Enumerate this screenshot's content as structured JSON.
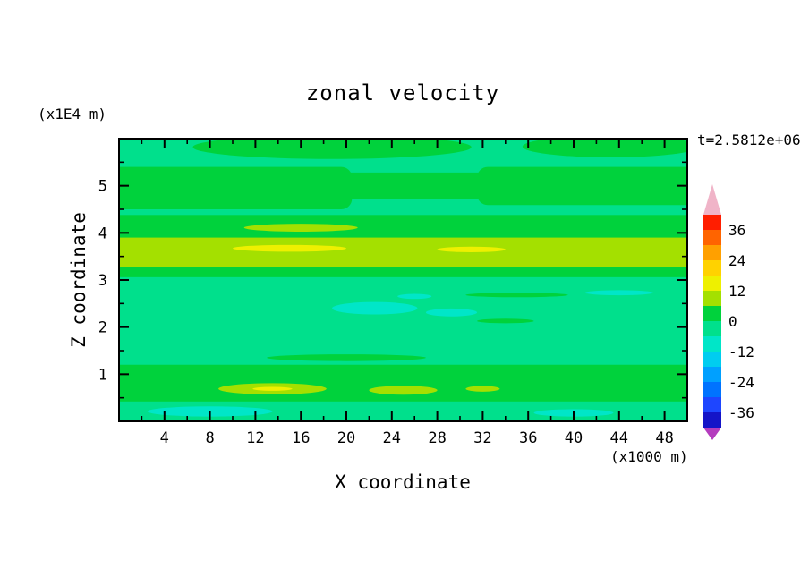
{
  "figure": {
    "title": "zonal velocity",
    "timestamp": "t=2.5812e+06",
    "x_axis": {
      "label": "X coordinate",
      "unit": "(x1000 m)"
    },
    "y_axis": {
      "label": "Z coordinate",
      "unit": "(x1E4 m)"
    }
  },
  "chart_data": {
    "type": "heatmap",
    "subtype": "filled-contour",
    "title": "zonal velocity",
    "xlabel": "X coordinate",
    "ylabel": "Z coordinate",
    "x_unit_note": "(x1000 m)",
    "y_unit_note": "(x1E4 m)",
    "time_annotation": "t=2.5812e+06",
    "x_range": [
      0,
      50
    ],
    "y_range": [
      0,
      6
    ],
    "x_ticks_major": [
      4,
      8,
      12,
      16,
      20,
      24,
      28,
      32,
      36,
      40,
      44,
      48
    ],
    "x_ticks_minor": [
      2,
      6,
      10,
      14,
      18,
      22,
      26,
      30,
      34,
      38,
      42,
      46,
      50
    ],
    "y_ticks_major": [
      1,
      2,
      3,
      4,
      5
    ],
    "y_ticks_minor": [
      0.5,
      1.5,
      2.5,
      3.5,
      4.5,
      5.5
    ],
    "grid": false,
    "legend_position": "right-colorbar",
    "colorbar": {
      "labels": [
        "36",
        "24",
        "12",
        "0",
        "-12",
        "-24",
        "-36"
      ],
      "label_values": [
        36,
        24,
        12,
        0,
        -12,
        -24,
        -36
      ],
      "level_min": -42,
      "level_max": 42,
      "level_step": 6,
      "palette_bottom_to_top": [
        "#1414c8",
        "#1e46ff",
        "#0073ff",
        "#00a0ff",
        "#00cdf0",
        "#00e6c8",
        "#00e08c",
        "#00d23c",
        "#a4e000",
        "#eef000",
        "#ffd200",
        "#ffa000",
        "#ff6400",
        "#ff1e00"
      ],
      "under_arrow_color": "#b43cbe",
      "over_arrow_color": "#f0b4c8"
    },
    "base_level_index": 6,
    "field_summary": "Horizontally banded zonal velocity field: mostly -6..0 (spring green) background; 0..6 green bands near top (z~4.6-5.5) and bottom (z~0.4-1.2); 6..12 yellow-green stripe at z~3.2-3.8 with small 12..18 yellow lenses; -12..-6 cyan patches near z~2.1-2.5 and along bottom edge",
    "bands": [
      {
        "shape": "ellipse",
        "cx": 0.375,
        "cy": 0.03,
        "rx": 0.245,
        "ry": 0.042,
        "level": 7
      },
      {
        "shape": "ellipse",
        "cx": 0.865,
        "cy": 0.028,
        "rx": 0.155,
        "ry": 0.038,
        "level": 7
      },
      {
        "shape": "rect",
        "x": -0.02,
        "y": 0.1,
        "w": 0.43,
        "h": 0.15,
        "r": 1,
        "level": 7
      },
      {
        "shape": "rect",
        "x": 0.3,
        "y": 0.12,
        "w": 0.36,
        "h": 0.092,
        "r": 1,
        "level": 7
      },
      {
        "shape": "rect",
        "x": 0.63,
        "y": 0.1,
        "w": 0.4,
        "h": 0.135,
        "r": 1,
        "level": 7
      },
      {
        "shape": "rect",
        "x": -0.02,
        "y": 0.27,
        "w": 1.04,
        "h": 0.22,
        "r": 0,
        "level": 7
      },
      {
        "shape": "ellipse",
        "cx": 0.32,
        "cy": 0.315,
        "rx": 0.1,
        "ry": 0.014,
        "level": 8
      },
      {
        "shape": "rect",
        "x": -0.02,
        "y": 0.35,
        "w": 1.04,
        "h": 0.105,
        "r": 0,
        "level": 8
      },
      {
        "shape": "ellipse",
        "cx": 0.3,
        "cy": 0.388,
        "rx": 0.1,
        "ry": 0.012,
        "level": 9
      },
      {
        "shape": "ellipse",
        "cx": 0.62,
        "cy": 0.392,
        "rx": 0.06,
        "ry": 0.01,
        "level": 9
      },
      {
        "shape": "ellipse",
        "cx": 0.45,
        "cy": 0.6,
        "rx": 0.075,
        "ry": 0.022,
        "level": 5
      },
      {
        "shape": "ellipse",
        "cx": 0.585,
        "cy": 0.615,
        "rx": 0.045,
        "ry": 0.014,
        "level": 5
      },
      {
        "shape": "ellipse",
        "cx": 0.52,
        "cy": 0.558,
        "rx": 0.03,
        "ry": 0.009,
        "level": 5
      },
      {
        "shape": "ellipse",
        "cx": 0.88,
        "cy": 0.545,
        "rx": 0.06,
        "ry": 0.009,
        "level": 5
      },
      {
        "shape": "ellipse",
        "cx": 0.7,
        "cy": 0.553,
        "rx": 0.09,
        "ry": 0.008,
        "level": 7
      },
      {
        "shape": "ellipse",
        "cx": 0.68,
        "cy": 0.645,
        "rx": 0.05,
        "ry": 0.008,
        "level": 7
      },
      {
        "shape": "ellipse",
        "cx": 0.4,
        "cy": 0.775,
        "rx": 0.14,
        "ry": 0.012,
        "level": 7
      },
      {
        "shape": "rect",
        "x": -0.02,
        "y": 0.8,
        "w": 1.04,
        "h": 0.13,
        "r": 1,
        "level": 7
      },
      {
        "shape": "ellipse",
        "cx": 0.27,
        "cy": 0.885,
        "rx": 0.095,
        "ry": 0.02,
        "level": 8
      },
      {
        "shape": "ellipse",
        "cx": 0.5,
        "cy": 0.89,
        "rx": 0.06,
        "ry": 0.016,
        "level": 8
      },
      {
        "shape": "ellipse",
        "cx": 0.64,
        "cy": 0.885,
        "rx": 0.03,
        "ry": 0.01,
        "level": 8
      },
      {
        "shape": "ellipse",
        "cx": 0.27,
        "cy": 0.885,
        "rx": 0.035,
        "ry": 0.007,
        "level": 9
      },
      {
        "shape": "rect",
        "x": -0.02,
        "y": 0.93,
        "w": 1.04,
        "h": 0.1,
        "r": 0,
        "level": 6
      },
      {
        "shape": "ellipse",
        "cx": 0.16,
        "cy": 0.965,
        "rx": 0.11,
        "ry": 0.018,
        "level": 5
      },
      {
        "shape": "ellipse",
        "cx": 0.8,
        "cy": 0.97,
        "rx": 0.07,
        "ry": 0.013,
        "level": 5
      }
    ]
  }
}
